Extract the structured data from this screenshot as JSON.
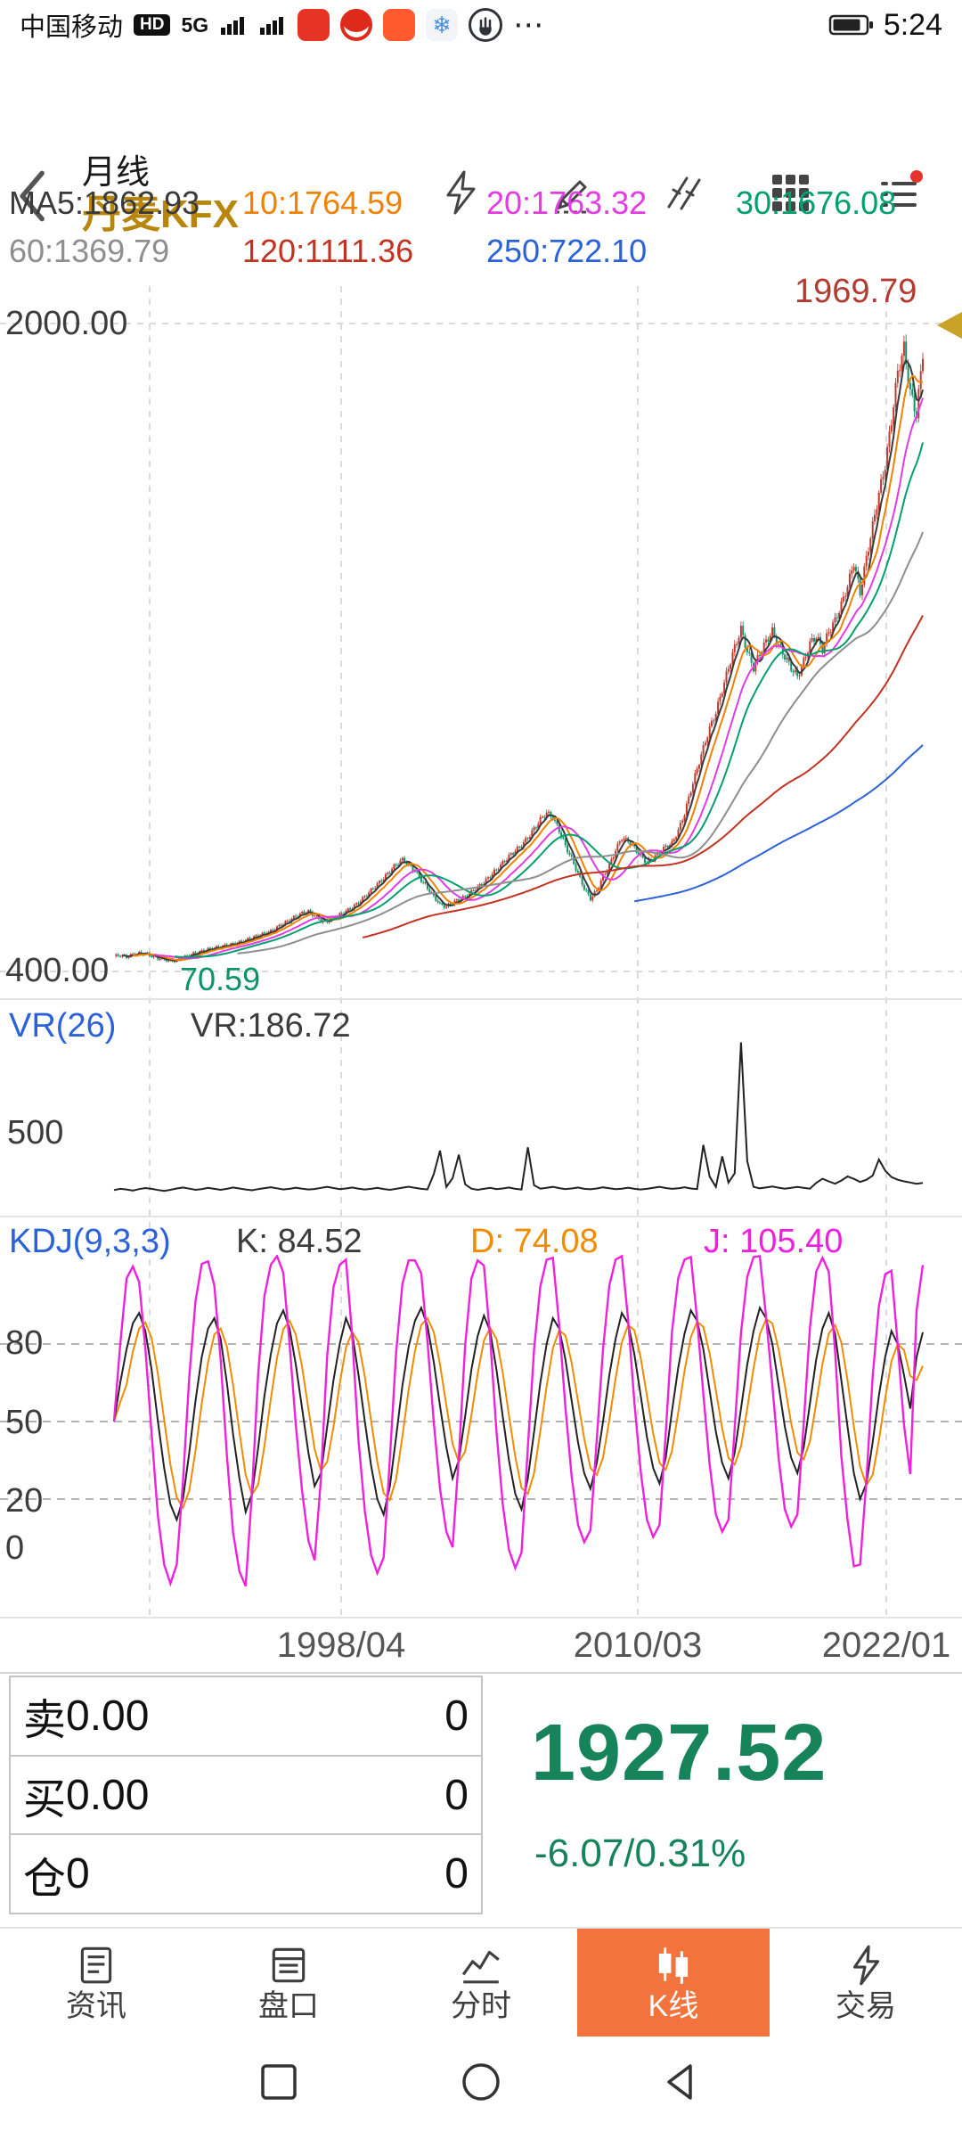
{
  "status_bar": {
    "carrier": "中国移动",
    "hd_badge": "HD",
    "network": "5G",
    "ellipsis": "⋯",
    "time": "5:24"
  },
  "header": {
    "period": "月线",
    "symbol": "丹麦KFX",
    "symbol_color": "#b8860b"
  },
  "ma_legend": {
    "row1": [
      {
        "label": "MA5:1862.93",
        "color": "#3a3a3a"
      },
      {
        "label": "10:1764.59",
        "color": "#f08200"
      },
      {
        "label": "20:1763.32",
        "color": "#e23ce2"
      },
      {
        "label": "30:1676.08",
        "color": "#00a06e"
      }
    ],
    "row2": [
      {
        "label": "60:1369.79",
        "color": "#8e8e8e"
      },
      {
        "label": "120:1111.36",
        "color": "#c23220"
      },
      {
        "label": "250:722.10",
        "color": "#2b62d9"
      }
    ]
  },
  "main_chart": {
    "y_top_label": "2000.00",
    "y_bottom_label": "400.00",
    "period_high": "1969.79",
    "period_low": "70.59",
    "high_color": "#b23b32",
    "low_color": "#0c9468",
    "marker_color": "#c9a227"
  },
  "vr_panel": {
    "title": "VR(26)",
    "title_color": "#2b62d9",
    "value_label": "VR:186.72",
    "y_label": "500"
  },
  "kdj_panel": {
    "title": "KDJ(9,3,3)",
    "title_color": "#2b62d9",
    "k_label": "K: 84.52",
    "d_label": "D: 74.08",
    "j_label": "J: 105.40",
    "k_color": "#222222",
    "d_color": "#f08c00",
    "j_color": "#ee22dd",
    "levels": [
      "80",
      "50",
      "20",
      "0"
    ]
  },
  "x_axis": {
    "dates": [
      "1998/04",
      "2010/03",
      "2022/01"
    ]
  },
  "bottom_panel": {
    "rows": [
      {
        "label": "卖",
        "value": "0.00",
        "qty": "0"
      },
      {
        "label": "买",
        "value": "0.00",
        "qty": "0"
      },
      {
        "label": "仓",
        "value": "0",
        "qty": "0"
      }
    ],
    "price": "1927.52",
    "change": "-6.07/0.31%",
    "price_color": "#17835a"
  },
  "tab_bar": {
    "active_bg": "#f2733e",
    "active_index": 3,
    "items": [
      {
        "label": "资讯"
      },
      {
        "label": "盘口"
      },
      {
        "label": "分时"
      },
      {
        "label": "K线"
      },
      {
        "label": "交易"
      }
    ]
  },
  "chart_data": [
    {
      "type": "candlestick",
      "title": "丹麦KFX 月线 (monthly K-line)",
      "x_ticks": [
        "1998/04",
        "2010/03",
        "2022/01"
      ],
      "y_gridlines": [
        2000,
        400
      ],
      "visible_high": 1969.79,
      "visible_low": 70.59,
      "last_close": 1927.52,
      "up_color": "#c13a30",
      "down_color": "#159069",
      "ma_windows": [
        5,
        10,
        20,
        30,
        60,
        120,
        250
      ],
      "ma_colors": [
        "#3a3a3a",
        "#f08200",
        "#e23ce2",
        "#00a06e",
        "#8e8e8e",
        "#c23220",
        "#2b62d9"
      ],
      "ma_current": {
        "MA5": 1862.93,
        "MA10": 1764.59,
        "MA20": 1763.32,
        "MA30": 1676.08,
        "MA60": 1369.79,
        "MA120": 1111.36,
        "MA250": 722.1
      },
      "closes_sampled": [
        438,
        440,
        436,
        442,
        445,
        444,
        438,
        433,
        430,
        426,
        428,
        434,
        440,
        446,
        450,
        455,
        458,
        461,
        465,
        468,
        472,
        477,
        483,
        489,
        494,
        499,
        509,
        518,
        527,
        536,
        544,
        548,
        538,
        526,
        524,
        532,
        540,
        549,
        558,
        570,
        585,
        600,
        615,
        630,
        648,
        664,
        676,
        664,
        648,
        626,
        606,
        585,
        566,
        560,
        570,
        577,
        585,
        596,
        608,
        620,
        636,
        652,
        668,
        684,
        698,
        712,
        730,
        752,
        775,
        792,
        780,
        748,
        710,
        678,
        642,
        605,
        580,
        600,
        635,
        662,
        700,
        730,
        722,
        705,
        685,
        668,
        680,
        695,
        708,
        716,
        748,
        790,
        848,
        900,
        952,
        1000,
        1040,
        1095,
        1150,
        1200,
        1245,
        1190,
        1150,
        1185,
        1215,
        1240,
        1205,
        1178,
        1150,
        1128,
        1165,
        1210,
        1228,
        1195,
        1240,
        1266,
        1305,
        1352,
        1410,
        1335,
        1420,
        1500,
        1580,
        1650,
        1760,
        1880,
        1940,
        1830,
        1775,
        1927.52
      ]
    },
    {
      "type": "line",
      "name": "VR(26)",
      "current": 186.72,
      "y_gridlines": [
        500
      ],
      "values_sampled": [
        142,
        150,
        146,
        139,
        148,
        155,
        150,
        143,
        137,
        144,
        152,
        158,
        151,
        144,
        148,
        156,
        150,
        144,
        150,
        158,
        152,
        146,
        141,
        148,
        154,
        160,
        153,
        146,
        150,
        157,
        151,
        146,
        149,
        156,
        162,
        155,
        148,
        152,
        158,
        151,
        146,
        150,
        156,
        149,
        144,
        150,
        157,
        163,
        156,
        150,
        146,
        240,
        385,
        162,
        215,
        360,
        178,
        151,
        144,
        150,
        156,
        148,
        152,
        158,
        150,
        146,
        405,
        172,
        151,
        156,
        162,
        154,
        148,
        152,
        158,
        150,
        147,
        152,
        159,
        153,
        148,
        151,
        157,
        150,
        146,
        150,
        156,
        162,
        155,
        150,
        153,
        160,
        152,
        148,
        420,
        225,
        162,
        350,
        188,
        245,
        1050,
        320,
        162,
        153,
        158,
        164,
        157,
        151,
        156,
        162,
        156,
        151,
        186,
        212,
        196,
        181,
        201,
        226,
        211,
        192,
        206,
        231,
        330,
        262,
        222,
        206,
        196,
        189,
        181,
        186.72
      ]
    },
    {
      "type": "line",
      "name": "KDJ(9,3,3)",
      "k_current": 84.52,
      "d_current": 74.08,
      "j_current": 105.4,
      "levels": [
        80,
        50,
        20,
        0
      ],
      "k_sampled": [
        50,
        65,
        78,
        88,
        92,
        85,
        70,
        50,
        32,
        18,
        12,
        20,
        38,
        58,
        75,
        86,
        90,
        82,
        65,
        45,
        28,
        15,
        22,
        40,
        60,
        76,
        88,
        93,
        86,
        72,
        55,
        38,
        25,
        30,
        48,
        66,
        80,
        90,
        84,
        68,
        50,
        33,
        20,
        14,
        25,
        44,
        64,
        79,
        89,
        94,
        87,
        73,
        56,
        40,
        28,
        35,
        52,
        70,
        83,
        91,
        85,
        70,
        52,
        35,
        22,
        16,
        28,
        46,
        65,
        80,
        90,
        86,
        74,
        58,
        42,
        30,
        24,
        34,
        50,
        68,
        82,
        92,
        88,
        76,
        60,
        44,
        32,
        26,
        36,
        54,
        71,
        84,
        93,
        89,
        78,
        62,
        46,
        34,
        28,
        38,
        55,
        72,
        85,
        94,
        90,
        80,
        64,
        48,
        36,
        30,
        40,
        57,
        74,
        86,
        92,
        84,
        66,
        48,
        30,
        20,
        26,
        42,
        60,
        75,
        85,
        80,
        68,
        55,
        75,
        84.52
      ]
    }
  ]
}
